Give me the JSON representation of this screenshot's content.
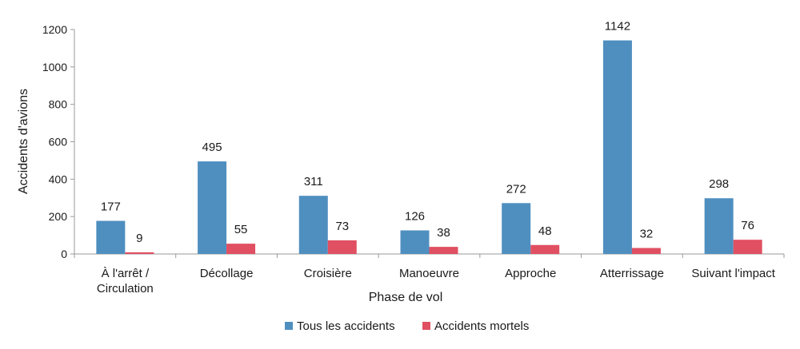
{
  "chart_data": {
    "type": "bar",
    "categories": [
      [
        "À l'arrêt /",
        "Circulation"
      ],
      [
        "Décollage"
      ],
      [
        "Croisière"
      ],
      [
        "Manoeuvre"
      ],
      [
        "Approche"
      ],
      [
        "Atterrissage"
      ],
      [
        "Suivant l'impact"
      ]
    ],
    "series": [
      {
        "name": "Tous les accidents",
        "color": "#4f8fc0",
        "values": [
          177,
          495,
          311,
          126,
          272,
          1142,
          298
        ]
      },
      {
        "name": "Accidents mortels",
        "color": "#e05062",
        "values": [
          9,
          55,
          73,
          38,
          48,
          32,
          76
        ]
      }
    ],
    "xlabel": "Phase de vol",
    "ylabel": "Accidents d'avions",
    "ylim": [
      0,
      1200
    ],
    "yticks": [
      0,
      200,
      400,
      600,
      800,
      1000,
      1200
    ],
    "grid": false,
    "legend": "bottom"
  }
}
